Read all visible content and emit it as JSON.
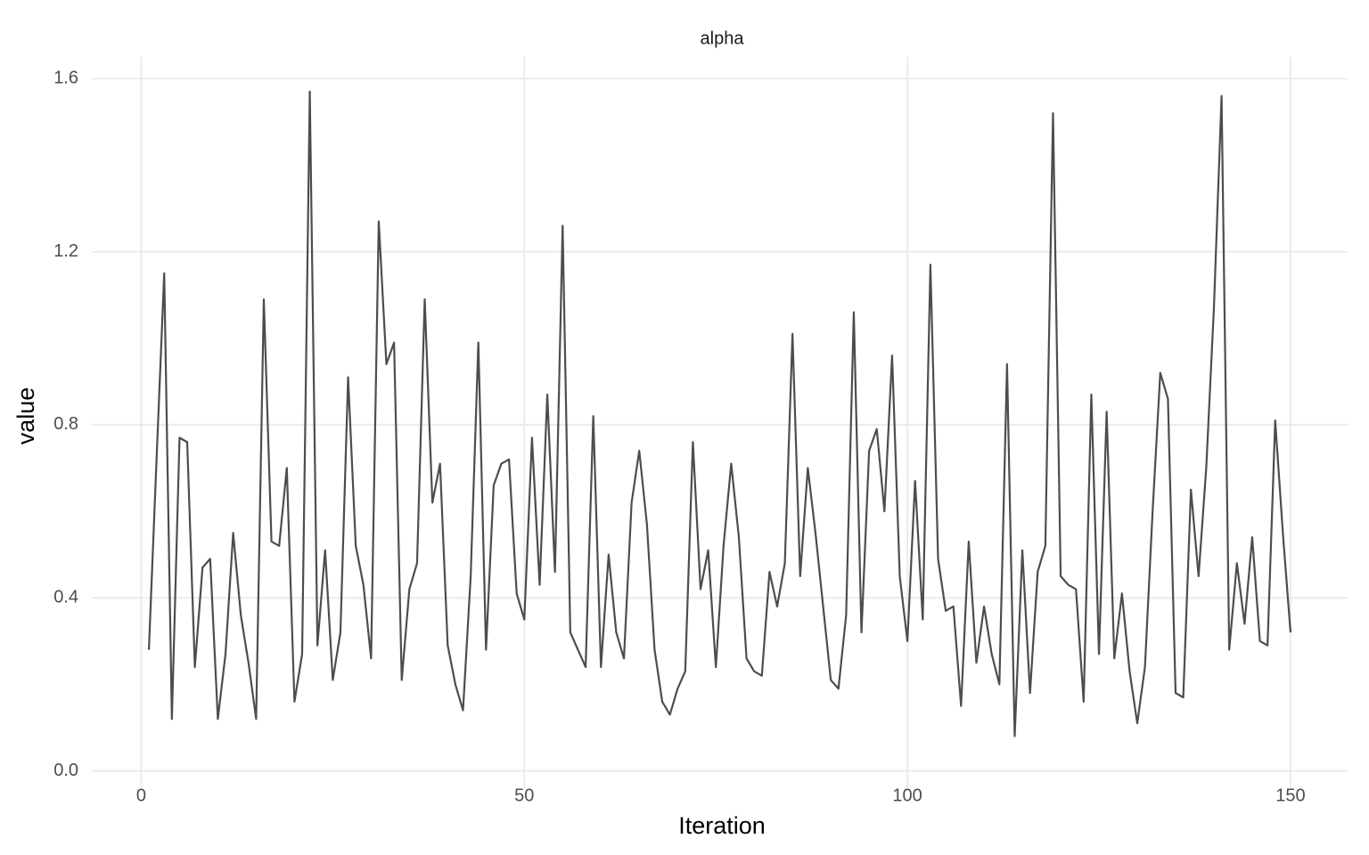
{
  "chart_data": {
    "type": "line",
    "title": "alpha",
    "x_label": "Iteration",
    "y_label": "value",
    "x": [
      1,
      2,
      3,
      4,
      5,
      6,
      7,
      8,
      9,
      10,
      11,
      12,
      13,
      14,
      15,
      16,
      17,
      18,
      19,
      20,
      21,
      22,
      23,
      24,
      25,
      26,
      27,
      28,
      29,
      30,
      31,
      32,
      33,
      34,
      35,
      36,
      37,
      38,
      39,
      40,
      41,
      42,
      43,
      44,
      45,
      46,
      47,
      48,
      49,
      50,
      51,
      52,
      53,
      54,
      55,
      56,
      57,
      58,
      59,
      60,
      61,
      62,
      63,
      64,
      65,
      66,
      67,
      68,
      69,
      70,
      71,
      72,
      73,
      74,
      75,
      76,
      77,
      78,
      79,
      80,
      81,
      82,
      83,
      84,
      85,
      86,
      87,
      88,
      89,
      90,
      91,
      92,
      93,
      94,
      95,
      96,
      97,
      98,
      99,
      100,
      101,
      102,
      103,
      104,
      105,
      106,
      107,
      108,
      109,
      110,
      111,
      112,
      113,
      114,
      115,
      116,
      117,
      118,
      119,
      120,
      121,
      122,
      123,
      124,
      125,
      126,
      127,
      128,
      129,
      130,
      131,
      132,
      133,
      134,
      135,
      136,
      137,
      138,
      139,
      140,
      141,
      142,
      143,
      144,
      145,
      146,
      147,
      148,
      149,
      150
    ],
    "values": [
      0.28,
      0.72,
      1.15,
      0.12,
      0.77,
      0.76,
      0.24,
      0.47,
      0.49,
      0.12,
      0.27,
      0.55,
      0.36,
      0.25,
      0.12,
      1.09,
      0.53,
      0.52,
      0.7,
      0.16,
      0.27,
      1.57,
      0.29,
      0.51,
      0.21,
      0.32,
      0.91,
      0.52,
      0.43,
      0.26,
      1.27,
      0.94,
      0.99,
      0.21,
      0.42,
      0.48,
      1.09,
      0.62,
      0.71,
      0.29,
      0.2,
      0.14,
      0.45,
      0.99,
      0.28,
      0.66,
      0.71,
      0.72,
      0.41,
      0.35,
      0.77,
      0.43,
      0.87,
      0.46,
      1.26,
      0.32,
      0.28,
      0.24,
      0.82,
      0.24,
      0.5,
      0.32,
      0.26,
      0.62,
      0.74,
      0.57,
      0.28,
      0.16,
      0.13,
      0.19,
      0.23,
      0.76,
      0.42,
      0.51,
      0.24,
      0.52,
      0.71,
      0.54,
      0.26,
      0.23,
      0.22,
      0.46,
      0.38,
      0.48,
      1.01,
      0.45,
      0.7,
      0.55,
      0.38,
      0.21,
      0.19,
      0.36,
      1.06,
      0.32,
      0.74,
      0.79,
      0.6,
      0.96,
      0.45,
      0.3,
      0.67,
      0.35,
      1.17,
      0.49,
      0.37,
      0.38,
      0.15,
      0.53,
      0.25,
      0.38,
      0.27,
      0.2,
      0.94,
      0.08,
      0.51,
      0.18,
      0.46,
      0.52,
      1.52,
      0.45,
      0.43,
      0.42,
      0.16,
      0.87,
      0.27,
      0.83,
      0.26,
      0.41,
      0.23,
      0.11,
      0.24,
      0.6,
      0.92,
      0.86,
      0.18,
      0.17,
      0.65,
      0.45,
      0.7,
      1.07,
      1.56,
      0.28,
      0.48,
      0.34,
      0.54,
      0.3,
      0.29,
      0.81,
      0.55,
      0.32
    ],
    "color": "#4d4d4d",
    "xlim": [
      -6.45,
      157.45
    ],
    "xticks": [
      0,
      50,
      100,
      150
    ],
    "ylim": [
      -0.04,
      1.65
    ],
    "yticks": [
      {
        "value": 0,
        "label": "0.0"
      },
      0.4,
      0.8,
      1.2,
      1.6
    ],
    "grid": true
  }
}
